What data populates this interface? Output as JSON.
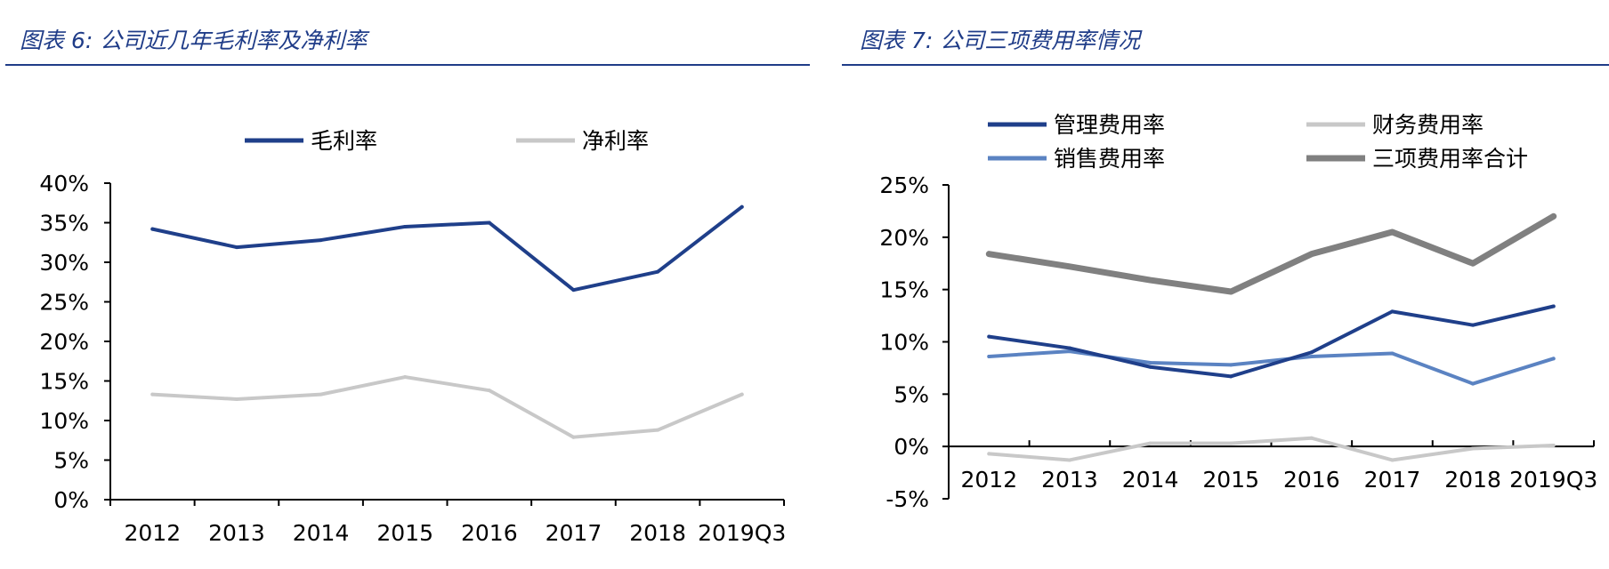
{
  "colors": {
    "accent": "#1f3c88",
    "gross_margin": "#1f3f8a",
    "net_margin": "#c8c8c8",
    "admin": "#1f3f8a",
    "finance": "#c8c8c8",
    "sales": "#5b83c2",
    "total": "#808080"
  },
  "chart_data": [
    {
      "type": "line",
      "title": "图表 6:  公司近几年毛利率及净利率",
      "categories": [
        "2012",
        "2013",
        "2014",
        "2015",
        "2016",
        "2017",
        "2018",
        "2019Q3"
      ],
      "series": [
        {
          "name": "毛利率",
          "values": [
            34.2,
            31.9,
            32.8,
            34.5,
            35.0,
            26.5,
            28.8,
            37.0
          ]
        },
        {
          "name": "净利率",
          "values": [
            13.3,
            12.7,
            13.3,
            15.5,
            13.8,
            7.9,
            8.8,
            13.3
          ]
        }
      ],
      "y_ticks": [
        "40%",
        "35%",
        "30%",
        "25%",
        "20%",
        "15%",
        "10%",
        "5%",
        "0%"
      ],
      "ylim": [
        0,
        40
      ],
      "legend": "top",
      "grid": false
    },
    {
      "type": "line",
      "title": "图表 7:  公司三项费用率情况",
      "categories": [
        "2012",
        "2013",
        "2014",
        "2015",
        "2016",
        "2017",
        "2018",
        "2019Q3"
      ],
      "series": [
        {
          "name": "管理费用率",
          "values": [
            10.5,
            9.4,
            7.6,
            6.7,
            9.0,
            12.9,
            11.6,
            13.4
          ]
        },
        {
          "name": "财务费用率",
          "values": [
            -0.7,
            -1.3,
            0.3,
            0.3,
            0.8,
            -1.3,
            -0.2,
            0.1
          ]
        },
        {
          "name": "销售费用率",
          "values": [
            8.6,
            9.1,
            8.0,
            7.8,
            8.6,
            8.9,
            6.0,
            8.4
          ]
        },
        {
          "name": "三项费用率合计",
          "values": [
            18.4,
            17.2,
            15.9,
            14.8,
            18.4,
            20.5,
            17.5,
            22.0
          ]
        }
      ],
      "y_ticks": [
        "25%",
        "20%",
        "15%",
        "10%",
        "5%",
        "0%",
        "-5%"
      ],
      "ylim": [
        -5,
        25
      ],
      "legend": "top",
      "grid": false
    }
  ]
}
